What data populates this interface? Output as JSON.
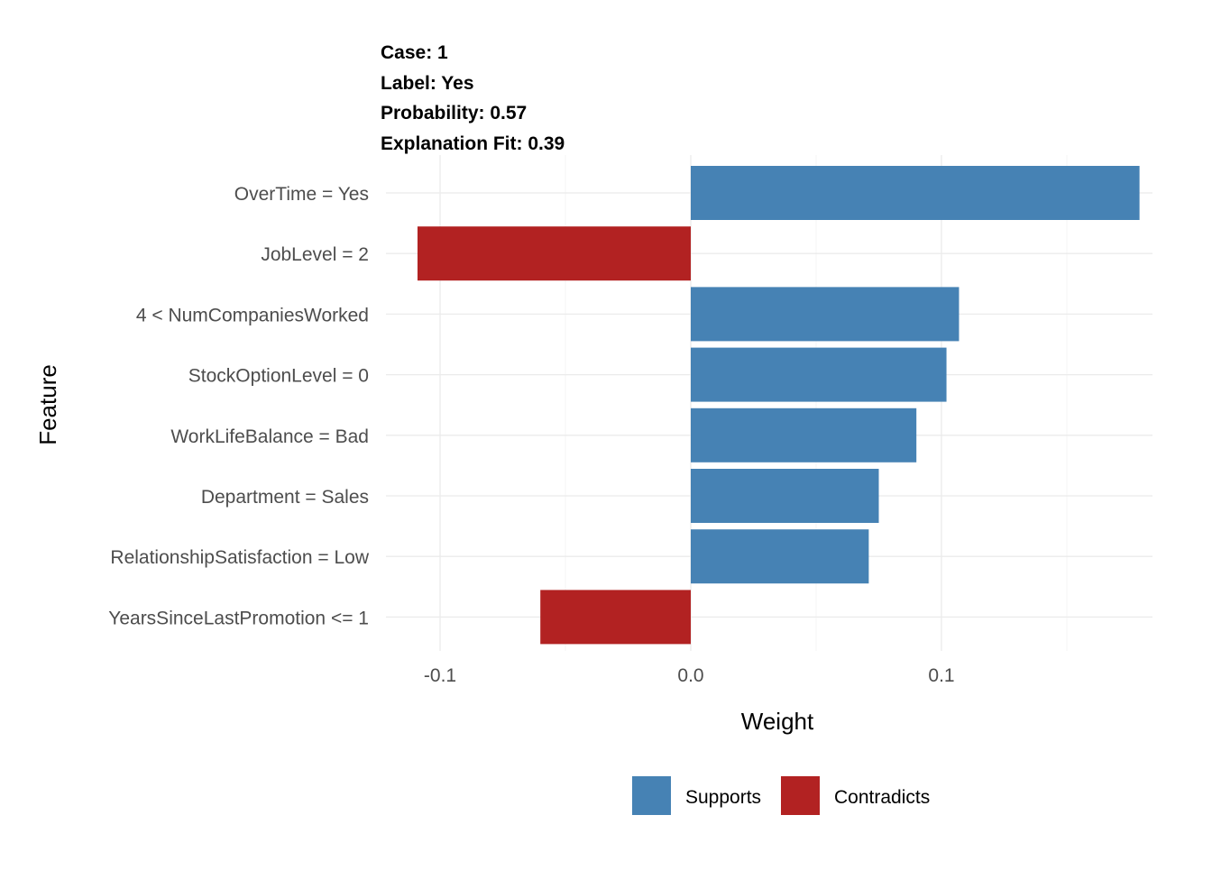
{
  "chart_data": {
    "type": "bar",
    "orientation": "horizontal",
    "title_lines": [
      "Case: 1",
      "Label: Yes",
      "Probability: 0.57",
      "Explanation Fit: 0.39"
    ],
    "xlabel": "Weight",
    "ylabel": "Feature",
    "xlim": [
      -0.1,
      0.18
    ],
    "x_ticks": [
      {
        "value": -0.1,
        "label": "-0.1"
      },
      {
        "value": 0.0,
        "label": "0.0"
      },
      {
        "value": 0.1,
        "label": "0.1"
      }
    ],
    "x_minor_ticks": [
      -0.05,
      0.05,
      0.15
    ],
    "grid": true,
    "categories": [
      "OverTime = Yes",
      "JobLevel = 2",
      "4 < NumCompaniesWorked",
      "StockOptionLevel = 0",
      "WorkLifeBalance = Bad",
      "Department = Sales",
      "RelationshipSatisfaction = Low",
      "YearsSinceLastPromotion <= 1"
    ],
    "values": [
      0.179,
      -0.109,
      0.107,
      0.102,
      0.09,
      0.075,
      0.071,
      -0.06
    ],
    "groups": [
      "Supports",
      "Contradicts",
      "Supports",
      "Supports",
      "Supports",
      "Supports",
      "Supports",
      "Contradicts"
    ],
    "colors": {
      "Supports": "#4682b4",
      "Contradicts": "#b22222"
    },
    "legend": {
      "position": "bottom",
      "entries": [
        {
          "label": "Supports",
          "key": "Supports"
        },
        {
          "label": "Contradicts",
          "key": "Contradicts"
        }
      ]
    }
  }
}
